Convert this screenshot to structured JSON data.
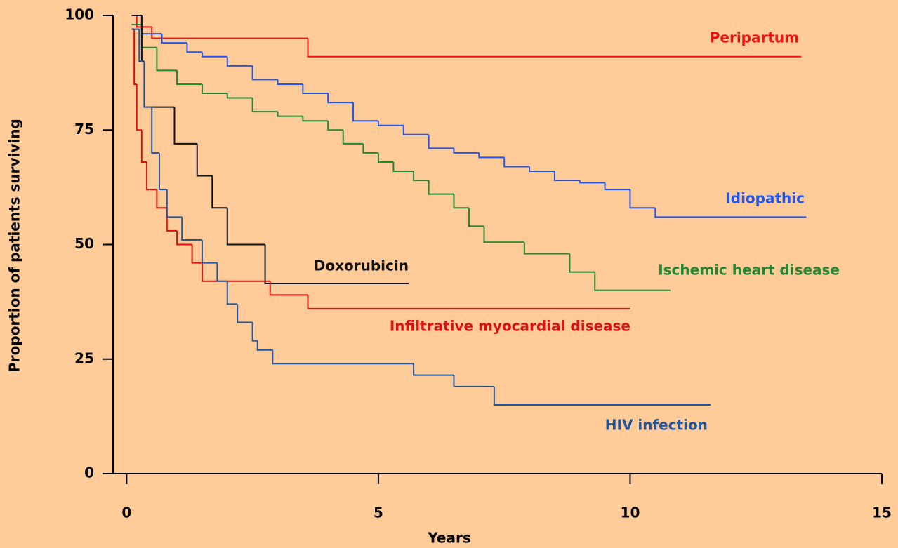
{
  "chart_data": {
    "type": "step",
    "xlabel": "Years",
    "ylabel": "Proportion of patients surviving",
    "xlim": [
      -0.27,
      15
    ],
    "ylim": [
      0,
      100
    ],
    "xticks": [
      0,
      5,
      10,
      15
    ],
    "yticks": [
      0,
      25,
      50,
      75,
      100
    ],
    "series": [
      {
        "name": "Peripartum",
        "color": "#ee1111",
        "x": [
          0.1,
          0.2,
          0.5,
          3.6,
          13.4
        ],
        "values": [
          100,
          97.5,
          95,
          91,
          91
        ]
      },
      {
        "name": "Idiopathic",
        "color": "#2255ee",
        "x": [
          0.1,
          0.3,
          0.7,
          1.2,
          1.5,
          2,
          2.5,
          3,
          3.5,
          4,
          4.5,
          5,
          5.5,
          6,
          6.5,
          7,
          7.5,
          8,
          8.5,
          9,
          9.5,
          10,
          10.5,
          13.5
        ],
        "values": [
          100,
          96,
          94,
          92,
          91,
          89,
          86,
          85,
          83,
          81,
          77,
          76,
          74,
          71,
          70,
          69,
          67,
          66,
          64,
          63.5,
          62,
          58,
          56,
          56
        ]
      },
      {
        "name": "Ischemic heart disease",
        "color": "#228833",
        "x": [
          0.1,
          0.3,
          0.6,
          1,
          1.5,
          2,
          2.5,
          3,
          3.5,
          4,
          4.3,
          4.7,
          5,
          5.3,
          5.7,
          6,
          6.5,
          6.8,
          7.1,
          7.9,
          8.8,
          9.3,
          10.8
        ],
        "values": [
          98,
          93,
          88,
          85,
          83,
          82,
          79,
          78,
          77,
          75,
          72,
          70,
          68,
          66,
          64,
          61,
          58,
          54,
          50.5,
          48,
          44,
          40,
          40
        ]
      },
      {
        "name": "Doxorubicin",
        "color": "#111111",
        "x": [
          0.1,
          0.3,
          0.35,
          0.95,
          1.4,
          1.7,
          2,
          2.75,
          5.6
        ],
        "values": [
          100,
          90,
          80,
          72,
          65,
          58,
          50,
          41.5,
          41.5
        ]
      },
      {
        "name": "Infiltrative myocardial disease",
        "color": "#dd1111",
        "x": [
          0.1,
          0.15,
          0.2,
          0.3,
          0.4,
          0.6,
          0.8,
          1,
          1.3,
          1.5,
          2.85,
          3.6,
          10.0
        ],
        "values": [
          97,
          85,
          75,
          68,
          62,
          58,
          53,
          50,
          46,
          42,
          39,
          36,
          36
        ]
      },
      {
        "name": "HIV infection",
        "color": "#225599",
        "x": [
          0.1,
          0.25,
          0.35,
          0.5,
          0.65,
          0.8,
          1.1,
          1.5,
          1.8,
          2,
          2.2,
          2.5,
          2.6,
          2.9,
          5.7,
          6.5,
          7.3,
          11.6
        ],
        "values": [
          97,
          90,
          80,
          70,
          62,
          56,
          51,
          46,
          42,
          37,
          33,
          29,
          27,
          24,
          21.5,
          19,
          15,
          15
        ]
      }
    ]
  }
}
